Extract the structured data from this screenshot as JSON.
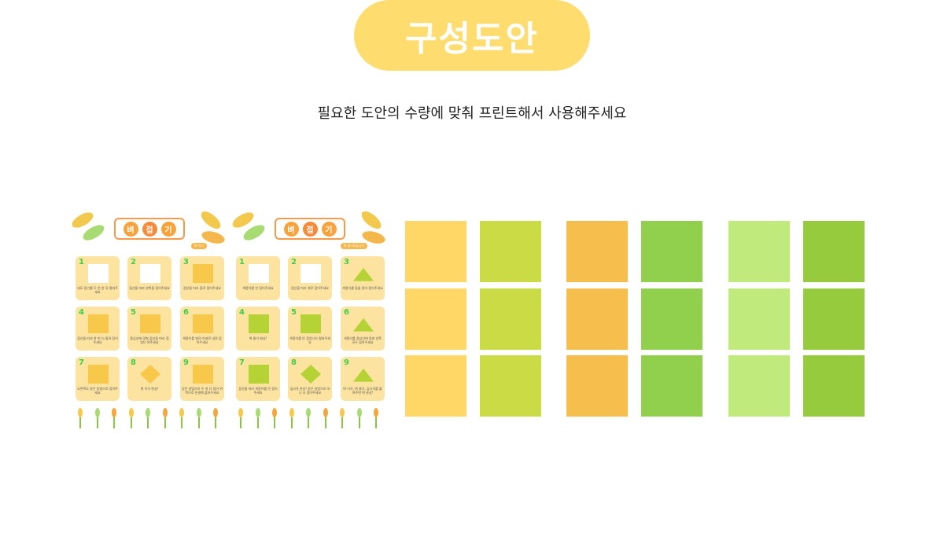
{
  "header": {
    "title": "구성도안",
    "subtitle": "필요한 도안의 수량에 맞춰 프린트해서 사용해주세요"
  },
  "sheets": [
    {
      "title_chars": [
        "벼",
        "접",
        "기"
      ],
      "badge": "벼 이삭",
      "steps": [
        {
          "n": "1",
          "cap": "네모 접기를 두 번 한 뒤 펼쳐주세요"
        },
        {
          "n": "2",
          "cap": "점선을 따라 양쪽을 접어주세요"
        },
        {
          "n": "3",
          "cap": "점선을 따라 올려 접어주세요"
        },
        {
          "n": "4",
          "cap": "점선을 따라 한 번 더 올려 접어주세요"
        },
        {
          "n": "5",
          "cap": "중심선에 맞춰 점선을 따라 접었다 펴주세요"
        },
        {
          "n": "6",
          "cap": "색종이를 벌려 아래로 내려 접어주세요"
        },
        {
          "n": "7",
          "cap": "오른쪽도 같은 방법으로 접어주세요"
        },
        {
          "n": "8",
          "cap": "벼 이삭 완성!"
        },
        {
          "n": "9",
          "cap": "같은 방법으로 두 개 더 접어 위쪽으로 연결해 붙여주세요"
        }
      ]
    },
    {
      "title_chars": [
        "벼",
        "접",
        "기"
      ],
      "badge": "벼 줄기&잎사귀",
      "steps": [
        {
          "n": "1",
          "cap": "색종이를 반 접어주세요"
        },
        {
          "n": "2",
          "cap": "점선을 따라 위로 접어주세요"
        },
        {
          "n": "3",
          "cap": "색종이를 돌돌 말아 접어주세요"
        },
        {
          "n": "4",
          "cap": "벼 줄기 완성!"
        },
        {
          "n": "5",
          "cap": "색종이를 반 접었다가 펼쳐주세요"
        },
        {
          "n": "6",
          "cap": "색종이를 중심선에 맞춰 양쪽 모두 접어주세요"
        },
        {
          "n": "7",
          "cap": "점선을 따라 색종이를 반 접어주세요"
        },
        {
          "n": "8",
          "cap": "잎사귀 완성! 같은 방법으로 하나 더 접어주세요"
        },
        {
          "n": "9",
          "cap": "벼 이삭, 벼 줄기, 잎사귀를 붙여주면 벼 완성!"
        }
      ]
    }
  ],
  "paper_colors": [
    "#fed766",
    "#cadb45",
    "#f6be4c",
    "#90d04d",
    "#c0ea7b",
    "#96cb3e"
  ]
}
